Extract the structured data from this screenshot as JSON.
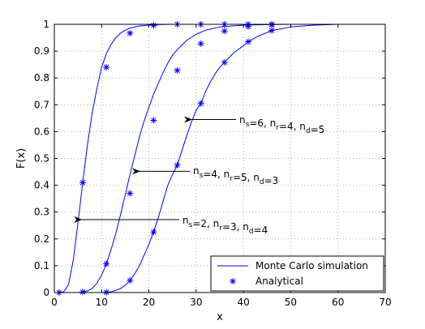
{
  "chart_data": {
    "type": "line",
    "title": "",
    "xlabel": "x",
    "ylabel": "F(x)",
    "xlim": [
      0,
      70
    ],
    "ylim": [
      0,
      1
    ],
    "xticks": [
      "0",
      "10",
      "20",
      "30",
      "40",
      "50",
      "60",
      "70"
    ],
    "yticks": [
      "0",
      "0.1",
      "0.2",
      "0.3",
      "0.4",
      "0.5",
      "0.6",
      "0.7",
      "0.8",
      "0.9",
      "1"
    ],
    "grid": true,
    "grid_style": "dotted",
    "colors": {
      "series": "#0000ff",
      "arrow": "#000000",
      "grid": "#b0b0b0"
    },
    "legend": {
      "placement": "bottom-right",
      "entries": [
        {
          "label": "Monte Carlo simulation",
          "marker": "line"
        },
        {
          "label": "Analytical",
          "marker": "asterisk"
        }
      ]
    },
    "series": [
      {
        "curve": [
          [
            0,
            0
          ],
          [
            1,
            0.0
          ],
          [
            2,
            0.003
          ],
          [
            3,
            0.03
          ],
          [
            4,
            0.12
          ],
          [
            5,
            0.26
          ],
          [
            6,
            0.41
          ],
          [
            7,
            0.55
          ],
          [
            8,
            0.67
          ],
          [
            9,
            0.76
          ],
          [
            10,
            0.84
          ],
          [
            11,
            0.89
          ],
          [
            12,
            0.925
          ],
          [
            13,
            0.95
          ],
          [
            14,
            0.967
          ],
          [
            15,
            0.978
          ],
          [
            16,
            0.986
          ],
          [
            18,
            0.994
          ],
          [
            20,
            0.997
          ],
          [
            22,
            0.999
          ],
          [
            25,
            1.0
          ],
          [
            70,
            1.0
          ]
        ],
        "points": [
          [
            1,
            0.0
          ],
          [
            6,
            0.41
          ],
          [
            11,
            0.84
          ],
          [
            16,
            0.967
          ],
          [
            21,
            0.996
          ],
          [
            26,
            1.0
          ],
          [
            31,
            1.0
          ],
          [
            36,
            1.0
          ],
          [
            41,
            1.0
          ],
          [
            46,
            1.0
          ]
        ]
      },
      {
        "curve": [
          [
            0,
            0
          ],
          [
            5,
            0.0
          ],
          [
            6,
            0.002
          ],
          [
            7,
            0.006
          ],
          [
            8,
            0.015
          ],
          [
            9,
            0.035
          ],
          [
            10,
            0.065
          ],
          [
            11,
            0.107
          ],
          [
            12,
            0.16
          ],
          [
            13,
            0.22
          ],
          [
            14,
            0.29
          ],
          [
            15,
            0.365
          ],
          [
            16,
            0.44
          ],
          [
            17,
            0.51
          ],
          [
            18,
            0.58
          ],
          [
            19,
            0.64
          ],
          [
            20,
            0.69
          ],
          [
            21,
            0.74
          ],
          [
            22,
            0.78
          ],
          [
            23,
            0.82
          ],
          [
            24,
            0.855
          ],
          [
            25,
            0.885
          ],
          [
            26,
            0.905
          ],
          [
            28,
            0.94
          ],
          [
            30,
            0.963
          ],
          [
            32,
            0.978
          ],
          [
            35,
            0.99
          ],
          [
            40,
            0.997
          ],
          [
            45,
            0.999
          ],
          [
            50,
            1.0
          ],
          [
            70,
            1.0
          ]
        ],
        "points": [
          [
            6,
            0.002
          ],
          [
            11,
            0.107
          ],
          [
            16,
            0.37
          ],
          [
            21,
            0.642
          ],
          [
            26,
            0.828
          ],
          [
            31,
            0.928
          ],
          [
            36,
            0.975
          ],
          [
            41,
            0.992
          ],
          [
            46,
            0.998
          ]
        ]
      },
      {
        "curve": [
          [
            0,
            0
          ],
          [
            10,
            0.0
          ],
          [
            11,
            0.001
          ],
          [
            12,
            0.003
          ],
          [
            13,
            0.008
          ],
          [
            14,
            0.015
          ],
          [
            15,
            0.027
          ],
          [
            16,
            0.045
          ],
          [
            17,
            0.07
          ],
          [
            18,
            0.1
          ],
          [
            19,
            0.14
          ],
          [
            20,
            0.18
          ],
          [
            21,
            0.226
          ],
          [
            22,
            0.28
          ],
          [
            23,
            0.34
          ],
          [
            24,
            0.4
          ],
          [
            25,
            0.44
          ],
          [
            26,
            0.475
          ],
          [
            27,
            0.53
          ],
          [
            28,
            0.585
          ],
          [
            29,
            0.635
          ],
          [
            30,
            0.68
          ],
          [
            31,
            0.705
          ],
          [
            32,
            0.75
          ],
          [
            33,
            0.785
          ],
          [
            34,
            0.815
          ],
          [
            35,
            0.84
          ],
          [
            36,
            0.858
          ],
          [
            38,
            0.895
          ],
          [
            40,
            0.92
          ],
          [
            41,
            0.935
          ],
          [
            43,
            0.955
          ],
          [
            46,
            0.977
          ],
          [
            50,
            0.99
          ],
          [
            55,
            0.997
          ],
          [
            60,
            1.0
          ],
          [
            70,
            1.0
          ]
        ],
        "points": [
          [
            11,
            0.001
          ],
          [
            16,
            0.045
          ],
          [
            21,
            0.226
          ],
          [
            26,
            0.475
          ],
          [
            31,
            0.705
          ],
          [
            36,
            0.858
          ],
          [
            41,
            0.935
          ],
          [
            46,
            0.977
          ]
        ]
      }
    ],
    "annotations": [
      {
        "parts": [
          [
            "n",
            "s"
          ],
          [
            "=6, n",
            "r"
          ],
          [
            "=4, n",
            "d"
          ],
          [
            "=5",
            ""
          ]
        ],
        "arrow_to": [
          28.5,
          0.645
        ]
      },
      {
        "parts": [
          [
            "n",
            "s"
          ],
          [
            "=4, n",
            "r"
          ],
          [
            "=5, n",
            "d"
          ],
          [
            "=3",
            ""
          ]
        ],
        "arrow_to": [
          17.5,
          0.452
        ]
      },
      {
        "parts": [
          [
            "n",
            "s"
          ],
          [
            "=2, n",
            "r"
          ],
          [
            "=3, n",
            "d"
          ],
          [
            "=4",
            ""
          ]
        ],
        "arrow_to": [
          5.2,
          0.272
        ]
      }
    ]
  }
}
